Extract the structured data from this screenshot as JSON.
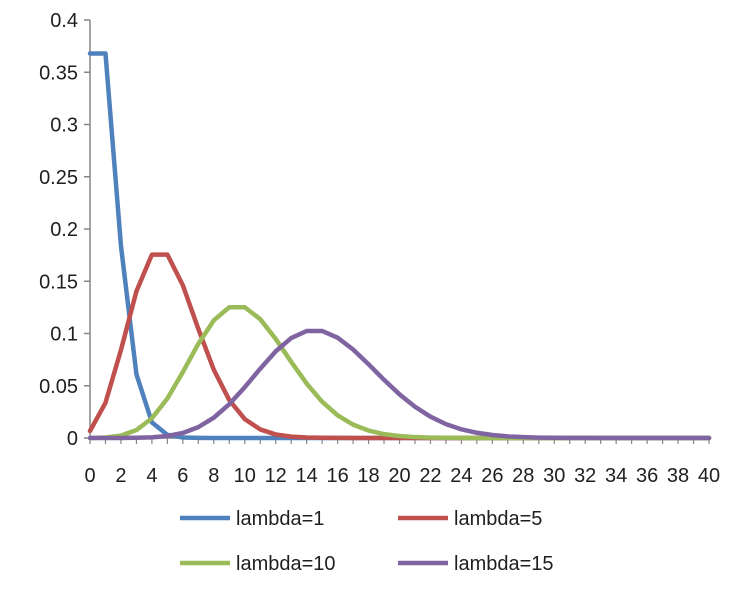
{
  "chart_data": {
    "type": "line",
    "title": "",
    "xlabel": "",
    "ylabel": "",
    "xlim": [
      0,
      40
    ],
    "ylim": [
      0,
      0.4
    ],
    "grid": false,
    "legend_position": "bottom",
    "x_tick_labels": [
      "0",
      "2",
      "4",
      "6",
      "8",
      "10",
      "12",
      "14",
      "16",
      "18",
      "20",
      "22",
      "24",
      "26",
      "28",
      "30",
      "32",
      "34",
      "36",
      "38",
      "40"
    ],
    "y_tick_labels": [
      "0",
      "0.05",
      "0.1",
      "0.15",
      "0.2",
      "0.25",
      "0.3",
      "0.35",
      "0.4"
    ],
    "y_tick_values": [
      0,
      0.05,
      0.1,
      0.15,
      0.2,
      0.25,
      0.3,
      0.35,
      0.4
    ],
    "x": [
      0,
      1,
      2,
      3,
      4,
      5,
      6,
      7,
      8,
      9,
      10,
      11,
      12,
      13,
      14,
      15,
      16,
      17,
      18,
      19,
      20,
      21,
      22,
      23,
      24,
      25,
      26,
      27,
      28,
      29,
      30,
      31,
      32,
      33,
      34,
      35,
      36,
      37,
      38,
      39,
      40
    ],
    "series": [
      {
        "name": "lambda=1",
        "color": "#4f81bd",
        "values": [
          0.368,
          0.368,
          0.184,
          0.061,
          0.015,
          0.003,
          0.0005,
          0.0001,
          0,
          0,
          0,
          0,
          0,
          0,
          0,
          0,
          0,
          0,
          0,
          0,
          0,
          0,
          0,
          0,
          0,
          0,
          0,
          0,
          0,
          0,
          0,
          0,
          0,
          0,
          0,
          0,
          0,
          0,
          0,
          0,
          0
        ]
      },
      {
        "name": "lambda=5",
        "color": "#c0504d",
        "values": [
          0.0067,
          0.0337,
          0.0842,
          0.1404,
          0.1755,
          0.1755,
          0.1462,
          0.1044,
          0.0653,
          0.0363,
          0.0181,
          0.0082,
          0.0034,
          0.0013,
          0.0005,
          0.0002,
          0.0001,
          0,
          0,
          0,
          0,
          0,
          0,
          0,
          0,
          0,
          0,
          0,
          0,
          0,
          0,
          0,
          0,
          0,
          0,
          0,
          0,
          0,
          0,
          0,
          0
        ]
      },
      {
        "name": "lambda=10",
        "color": "#9bbb59",
        "values": [
          0,
          0.0005,
          0.0023,
          0.0076,
          0.0189,
          0.0378,
          0.0631,
          0.0901,
          0.1126,
          0.1251,
          0.1251,
          0.1137,
          0.0948,
          0.0729,
          0.0521,
          0.0347,
          0.0217,
          0.0128,
          0.0071,
          0.0037,
          0.0019,
          0.0009,
          0.0004,
          0.0002,
          0.0001,
          0,
          0,
          0,
          0,
          0,
          0,
          0,
          0,
          0,
          0,
          0,
          0,
          0,
          0,
          0,
          0
        ]
      },
      {
        "name": "lambda=15",
        "color": "#8064a2",
        "values": [
          0,
          0,
          0,
          0.0002,
          0.0006,
          0.0019,
          0.0048,
          0.0104,
          0.0194,
          0.0324,
          0.0486,
          0.0663,
          0.0829,
          0.0956,
          0.1024,
          0.1024,
          0.096,
          0.0847,
          0.0706,
          0.0557,
          0.0418,
          0.0299,
          0.0204,
          0.0133,
          0.0083,
          0.005,
          0.0029,
          0.0016,
          0.0009,
          0.0004,
          0.0002,
          0.0001,
          0.0001,
          0,
          0,
          0,
          0,
          0,
          0,
          0,
          0
        ]
      }
    ]
  }
}
